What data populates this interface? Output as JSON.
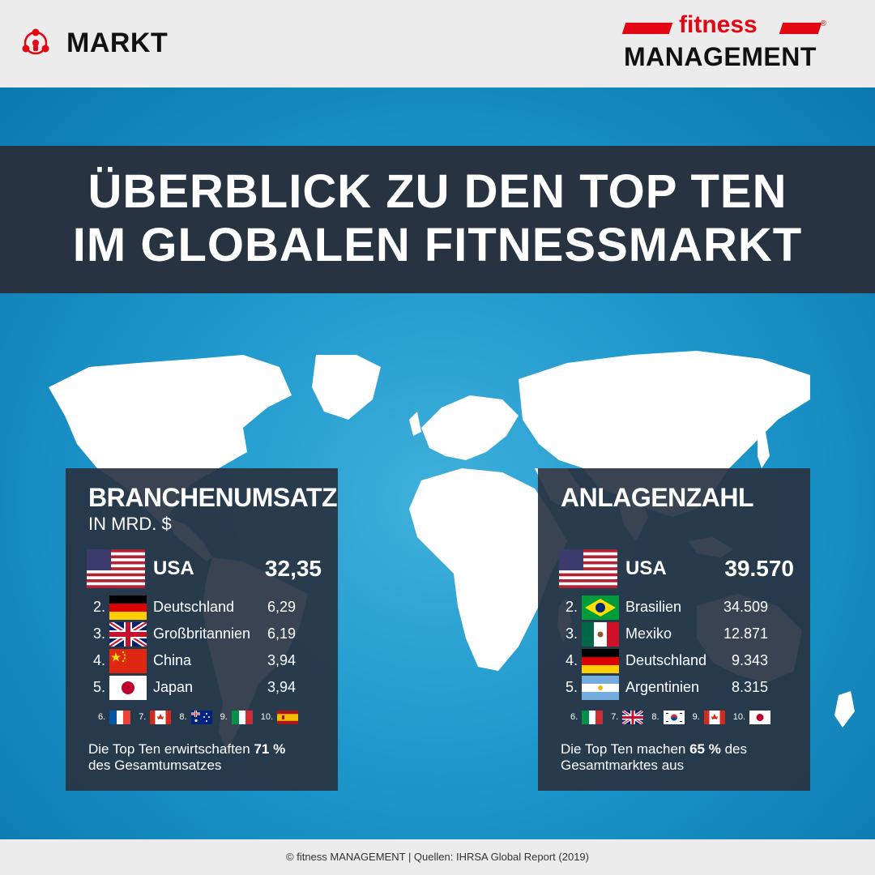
{
  "header": {
    "category_icon": "network-people-icon",
    "category": "MARKT",
    "logo_top": "fitness",
    "logo_reg": "®",
    "logo_bottom": "MANAGEMENT"
  },
  "title": {
    "line1": "ÜBERBLICK ZU DEN TOP TEN",
    "line2": "IM GLOBALEN FITNESSMARKT"
  },
  "left_panel": {
    "title": "BRANCHENUMSATZ",
    "subtitle": "IN MRD. $",
    "top": {
      "flag": "usa-flag-icon",
      "name": "USA",
      "value": "32,35"
    },
    "rows": [
      {
        "rank": "2.",
        "flag": "germany-flag-icon",
        "name": "Deutschland",
        "value": "6,29"
      },
      {
        "rank": "3.",
        "flag": "uk-flag-icon",
        "name": "Großbritannien",
        "value": "6,19"
      },
      {
        "rank": "4.",
        "flag": "china-flag-icon",
        "name": "China",
        "value": "3,94"
      },
      {
        "rank": "5.",
        "flag": "japan-flag-icon",
        "name": "Japan",
        "value": "3,94"
      }
    ],
    "minis": [
      {
        "rank": "6.",
        "flag": "france-flag-icon"
      },
      {
        "rank": "7.",
        "flag": "canada-flag-icon"
      },
      {
        "rank": "8.",
        "flag": "australia-flag-icon"
      },
      {
        "rank": "9.",
        "flag": "italy-flag-icon"
      },
      {
        "rank": "10.",
        "flag": "spain-flag-icon"
      }
    ],
    "note_pre": "Die Top Ten erwirtschaften ",
    "note_bold": "71 %",
    "note_post": "des Gesamtumsatzes"
  },
  "right_panel": {
    "title": "ANLAGENZAHL",
    "top": {
      "flag": "usa-flag-icon",
      "name": "USA",
      "value": "39.570"
    },
    "rows": [
      {
        "rank": "2.",
        "flag": "brazil-flag-icon",
        "name": "Brasilien",
        "value": "34.509"
      },
      {
        "rank": "3.",
        "flag": "mexico-flag-icon",
        "name": "Mexiko",
        "value": "12.871"
      },
      {
        "rank": "4.",
        "flag": "germany-flag-icon",
        "name": "Deutschland",
        "value": "9.343"
      },
      {
        "rank": "5.",
        "flag": "argentina-flag-icon",
        "name": "Argentinien",
        "value": "8.315"
      }
    ],
    "minis": [
      {
        "rank": "6.",
        "flag": "italy-flag-icon"
      },
      {
        "rank": "7.",
        "flag": "uk-flag-icon"
      },
      {
        "rank": "8.",
        "flag": "south-korea-flag-icon"
      },
      {
        "rank": "9.",
        "flag": "canada-flag-icon"
      },
      {
        "rank": "10.",
        "flag": "japan-flag-icon"
      }
    ],
    "note_pre": "Die Top Ten machen ",
    "note_bold": "65 %",
    "note_post": " des Gesamtmarktes aus"
  },
  "footer": {
    "text": "© fitness MANAGEMENT  |  Quellen: IHRSA Global Report (2019)"
  },
  "colors": {
    "brand_red": "#e30613",
    "panel_dark": "#283342",
    "ocean": "#1e98cc"
  }
}
